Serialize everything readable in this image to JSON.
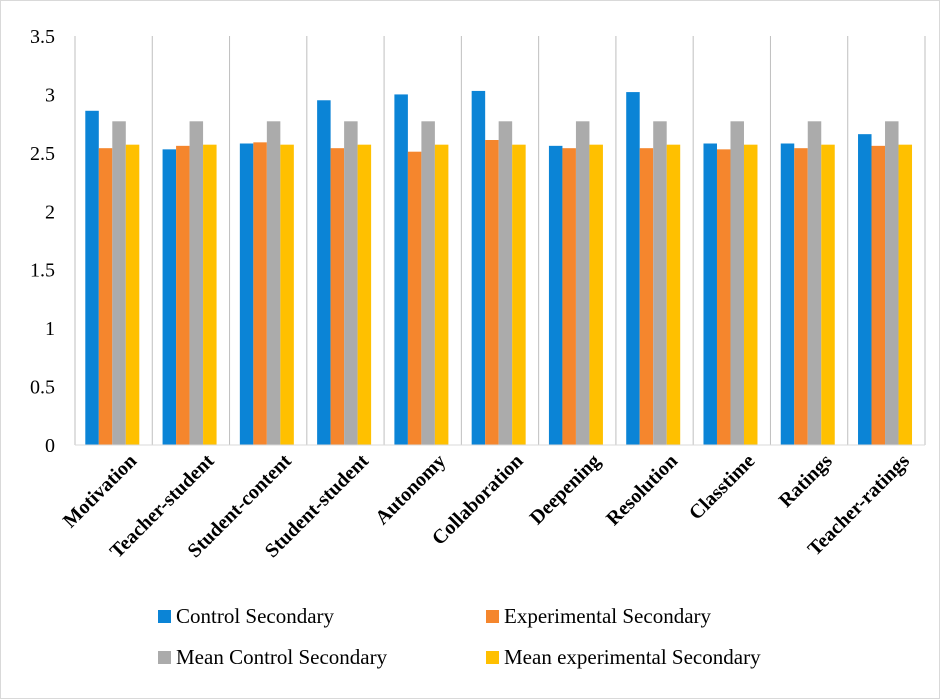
{
  "chart_data": {
    "type": "bar",
    "title": "",
    "xlabel": "",
    "ylabel": "",
    "ylim": [
      0,
      3.5
    ],
    "yticks": [
      "0",
      "0.5",
      "1",
      "1.5",
      "2",
      "2.5",
      "3",
      "3.5"
    ],
    "grid": "vertical separators between categories",
    "legend_position": "bottom",
    "categories": [
      "Motivation",
      "Teacher-student",
      "Student-content",
      "Student-student",
      "Autonomy",
      "Collaboration",
      "Deepening",
      "Resolution",
      "Classtime",
      "Ratings",
      "Teacher-ratings"
    ],
    "series": [
      {
        "name": "Control Secondary",
        "color": "#0B84D6",
        "values": [
          2.86,
          2.53,
          2.58,
          2.95,
          3.0,
          3.03,
          2.56,
          3.02,
          2.58,
          2.58,
          2.66
        ]
      },
      {
        "name": "Experimental Secondary",
        "color": "#F5862D",
        "values": [
          2.54,
          2.56,
          2.59,
          2.54,
          2.51,
          2.61,
          2.54,
          2.54,
          2.53,
          2.54,
          2.56
        ]
      },
      {
        "name": "Mean Control Secondary",
        "color": "#ABABAB",
        "values": [
          2.77,
          2.77,
          2.77,
          2.77,
          2.77,
          2.77,
          2.77,
          2.77,
          2.77,
          2.77,
          2.77
        ]
      },
      {
        "name": "Mean experimental Secondary",
        "color": "#FFC000",
        "values": [
          2.57,
          2.57,
          2.57,
          2.57,
          2.57,
          2.57,
          2.57,
          2.57,
          2.57,
          2.57,
          2.57
        ]
      }
    ]
  }
}
